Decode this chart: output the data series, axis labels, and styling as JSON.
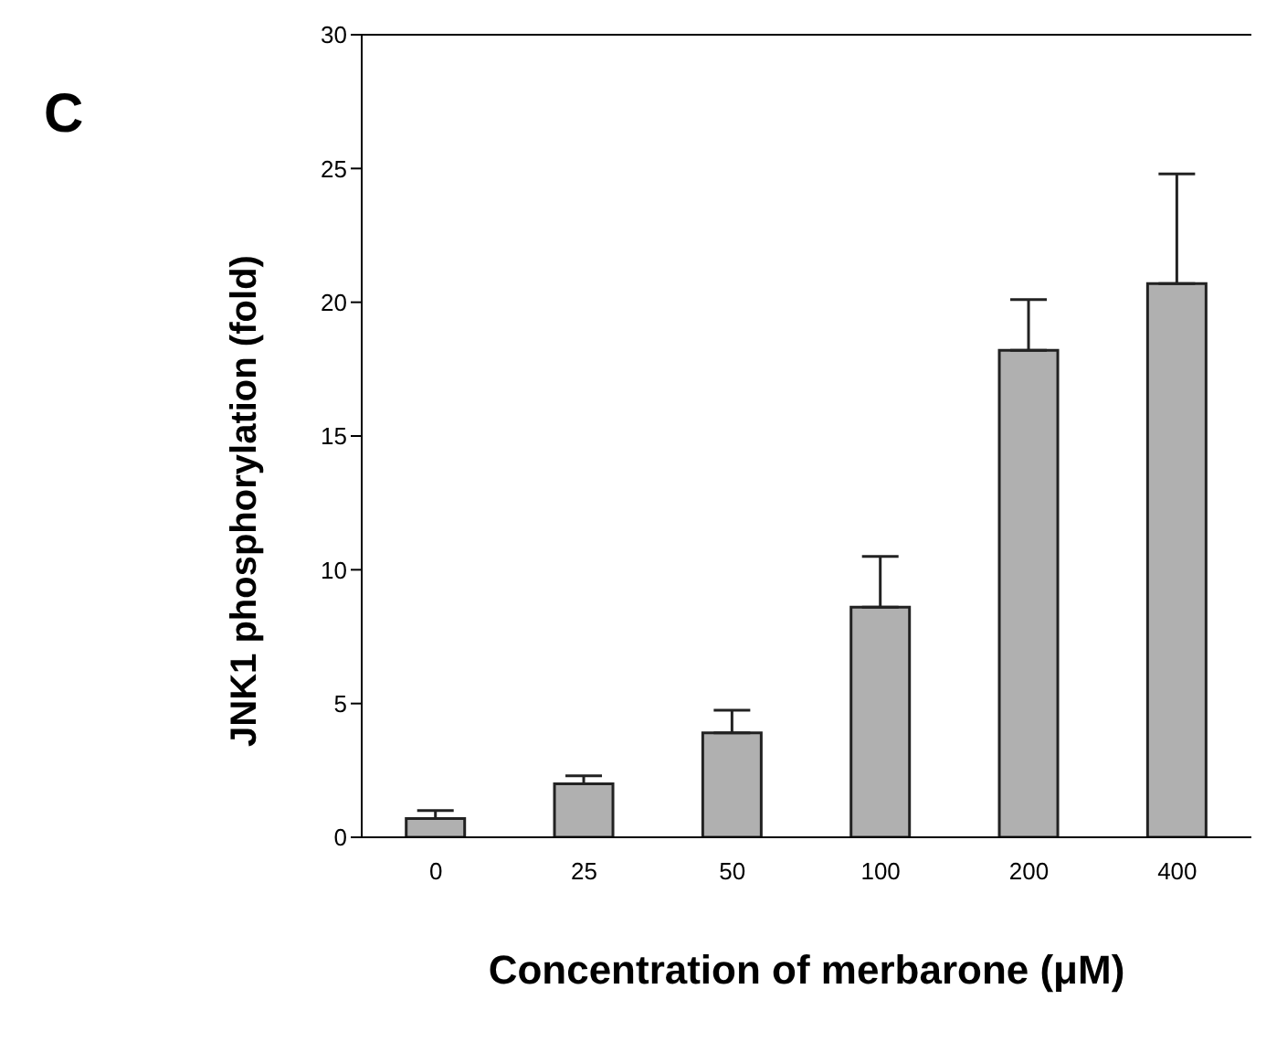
{
  "chart_data": {
    "type": "bar",
    "annotations": [
      "C"
    ],
    "xlabel": "Concentration of merbarone (μM)",
    "ylabel": "JNK1 phosphorylation (fold)",
    "categories": [
      "0",
      "25",
      "50",
      "100",
      "200",
      "400"
    ],
    "values": [
      0.7,
      2.0,
      3.9,
      8.6,
      18.2,
      20.7
    ],
    "errors": [
      [
        0.7,
        1.0
      ],
      [
        2.0,
        2.3
      ],
      [
        3.9,
        4.75
      ],
      [
        8.6,
        10.5
      ],
      [
        18.2,
        20.1
      ],
      [
        20.7,
        24.8
      ]
    ],
    "color": "#b0b0b0",
    "ylim": [
      0,
      30
    ],
    "yticks": [
      0,
      5,
      10,
      15,
      20,
      25,
      30
    ],
    "grid": false,
    "legend": false
  }
}
